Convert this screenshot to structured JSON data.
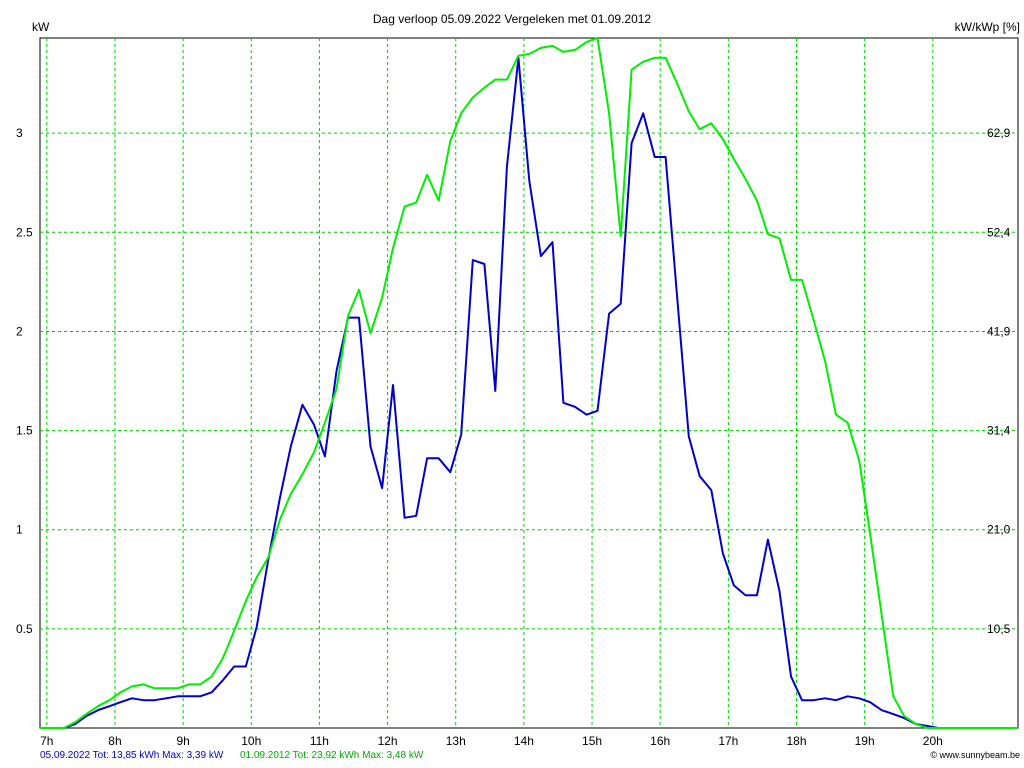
{
  "chart_data": {
    "type": "line",
    "title": "Dag  verloop 05.09.2022   Vergeleken met 01.09.2012",
    "ylabel_left": "kW",
    "ylabel_right": "kW/kWp [%]",
    "x_tick_labels": [
      "7h",
      "8h",
      "9h",
      "10h",
      "11h",
      "12h",
      "13h",
      "14h",
      "15h",
      "16h",
      "17h",
      "18h",
      "19h",
      "20h"
    ],
    "xlim": [
      6.9,
      21.25
    ],
    "ylim": [
      0,
      3.48
    ],
    "y_ticks": [
      0.5,
      1,
      1.5,
      2,
      2.5,
      3
    ],
    "y_tick_labels": [
      "0.5",
      "1",
      "1.5",
      "2",
      "2.5",
      "3"
    ],
    "y2_tick_labels": [
      "10,5",
      "21,0",
      "31,4",
      "41,9",
      "52,4",
      "62,9"
    ],
    "grid": true,
    "series": [
      {
        "name": "05.09.2022",
        "color": "#0000cc",
        "x": [
          6.9,
          7.25,
          7.42,
          7.58,
          7.75,
          7.92,
          8.08,
          8.25,
          8.42,
          8.58,
          8.75,
          8.92,
          9.08,
          9.25,
          9.42,
          9.58,
          9.75,
          9.92,
          10.08,
          10.25,
          10.42,
          10.58,
          10.75,
          10.92,
          11.08,
          11.25,
          11.42,
          11.58,
          11.75,
          11.92,
          12.08,
          12.25,
          12.42,
          12.58,
          12.75,
          12.92,
          13.08,
          13.25,
          13.42,
          13.58,
          13.75,
          13.92,
          14.08,
          14.25,
          14.42,
          14.58,
          14.75,
          14.92,
          15.08,
          15.25,
          15.42,
          15.58,
          15.75,
          15.92,
          16.08,
          16.25,
          16.42,
          16.58,
          16.75,
          16.92,
          17.08,
          17.25,
          17.42,
          17.58,
          17.75,
          17.92,
          18.08,
          18.25,
          18.42,
          18.58,
          18.75,
          18.92,
          19.08,
          19.25,
          19.42,
          19.58,
          19.75,
          19.92,
          20.08,
          20.5,
          21.25
        ],
        "y": [
          0,
          0,
          0.02,
          0.06,
          0.09,
          0.11,
          0.13,
          0.15,
          0.14,
          0.14,
          0.15,
          0.16,
          0.16,
          0.16,
          0.18,
          0.24,
          0.31,
          0.31,
          0.51,
          0.85,
          1.16,
          1.42,
          1.63,
          1.53,
          1.37,
          1.8,
          2.07,
          2.07,
          1.42,
          1.21,
          1.73,
          1.06,
          1.07,
          1.36,
          1.36,
          1.29,
          1.48,
          2.36,
          2.34,
          1.7,
          2.83,
          3.38,
          2.76,
          2.38,
          2.45,
          1.64,
          1.62,
          1.58,
          1.6,
          2.09,
          2.14,
          2.95,
          3.1,
          2.88,
          2.88,
          2.17,
          1.47,
          1.27,
          1.2,
          0.88,
          0.72,
          0.67,
          0.67,
          0.95,
          0.69,
          0.26,
          0.14,
          0.14,
          0.15,
          0.14,
          0.16,
          0.15,
          0.13,
          0.09,
          0.07,
          0.05,
          0.02,
          0.01,
          0,
          0,
          0
        ]
      },
      {
        "name": "01.09.2012",
        "color": "#00ee00",
        "x": [
          6.9,
          7.25,
          7.42,
          7.58,
          7.75,
          7.92,
          8.08,
          8.25,
          8.42,
          8.58,
          8.75,
          8.92,
          9.08,
          9.25,
          9.42,
          9.58,
          9.75,
          9.92,
          10.08,
          10.25,
          10.42,
          10.58,
          10.75,
          10.92,
          11.08,
          11.25,
          11.42,
          11.58,
          11.75,
          11.92,
          12.08,
          12.25,
          12.42,
          12.58,
          12.75,
          12.92,
          13.08,
          13.25,
          13.42,
          13.58,
          13.75,
          13.92,
          14.08,
          14.25,
          14.42,
          14.58,
          14.75,
          14.92,
          15.08,
          15.25,
          15.42,
          15.58,
          15.75,
          15.92,
          16.08,
          16.25,
          16.42,
          16.58,
          16.75,
          16.92,
          17.08,
          17.25,
          17.42,
          17.58,
          17.75,
          17.92,
          18.08,
          18.25,
          18.42,
          18.58,
          18.75,
          18.92,
          19.08,
          19.25,
          19.42,
          19.58,
          19.75,
          19.92,
          20.08,
          20.5,
          21.25
        ],
        "y": [
          0,
          0,
          0.03,
          0.07,
          0.11,
          0.14,
          0.18,
          0.21,
          0.22,
          0.2,
          0.2,
          0.2,
          0.22,
          0.22,
          0.26,
          0.35,
          0.49,
          0.64,
          0.76,
          0.86,
          1.05,
          1.18,
          1.28,
          1.39,
          1.54,
          1.71,
          2.08,
          2.21,
          1.99,
          2.17,
          2.42,
          2.63,
          2.65,
          2.79,
          2.66,
          2.96,
          3.1,
          3.18,
          3.23,
          3.27,
          3.27,
          3.39,
          3.4,
          3.43,
          3.44,
          3.41,
          3.42,
          3.46,
          3.48,
          3.1,
          2.48,
          3.32,
          3.36,
          3.38,
          3.38,
          3.25,
          3.11,
          3.02,
          3.05,
          2.97,
          2.87,
          2.77,
          2.66,
          2.49,
          2.47,
          2.26,
          2.26,
          2.06,
          1.85,
          1.58,
          1.54,
          1.35,
          0.98,
          0.57,
          0.16,
          0.06,
          0.02,
          0,
          0,
          0,
          0
        ]
      }
    ]
  },
  "footer": {
    "series1": "05.09.2022 Tot: 13,85 kWh Max: 3,39 kW",
    "series2": "01.09.2012 Tot: 23,92 kWh Max: 3,48 kW",
    "copyright": "© www.sunnybeam.be"
  }
}
